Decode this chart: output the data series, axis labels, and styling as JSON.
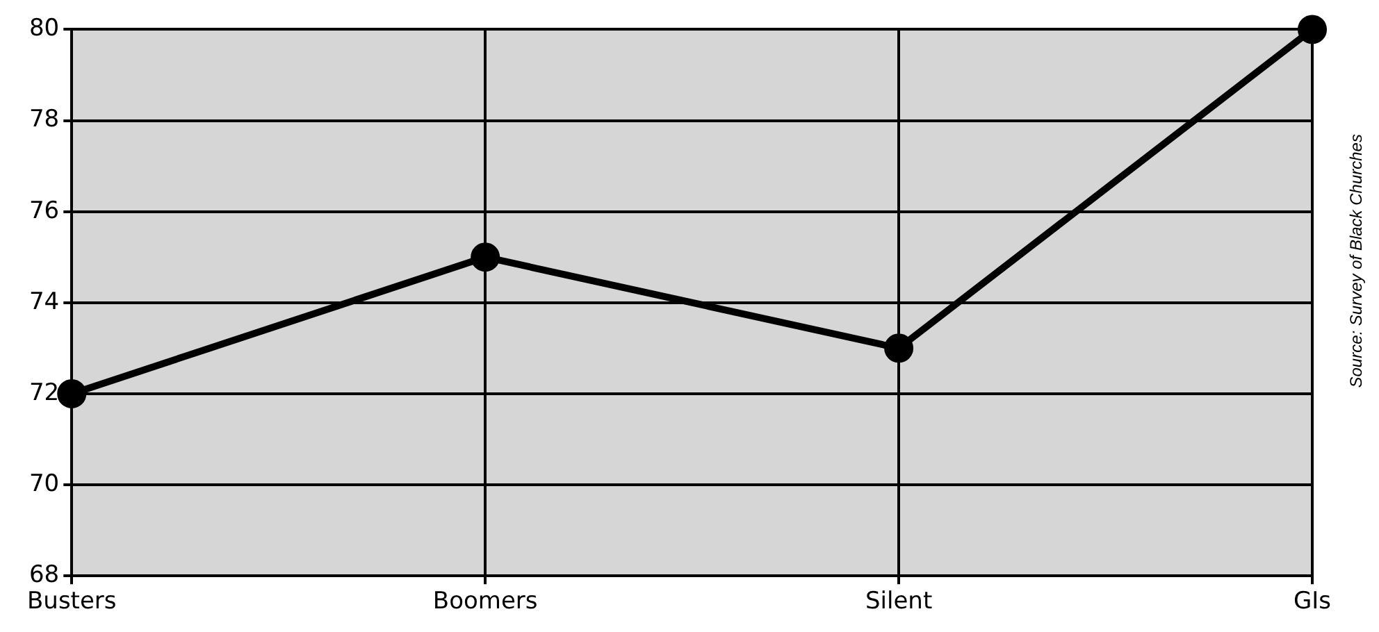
{
  "chart_data": {
    "type": "line",
    "categories": [
      "Busters",
      "Boomers",
      "Silent",
      "GIs"
    ],
    "series": [
      {
        "color": "#000000",
        "values": [
          72,
          75,
          73,
          80
        ]
      }
    ],
    "ylim": [
      68,
      80
    ],
    "yticks": [
      68,
      70,
      72,
      74,
      76,
      78,
      80
    ],
    "grid": true,
    "legend": false,
    "marker": "circle",
    "line_style": "solid",
    "annotations": [
      "Source: Survey of Black Churches"
    ]
  }
}
